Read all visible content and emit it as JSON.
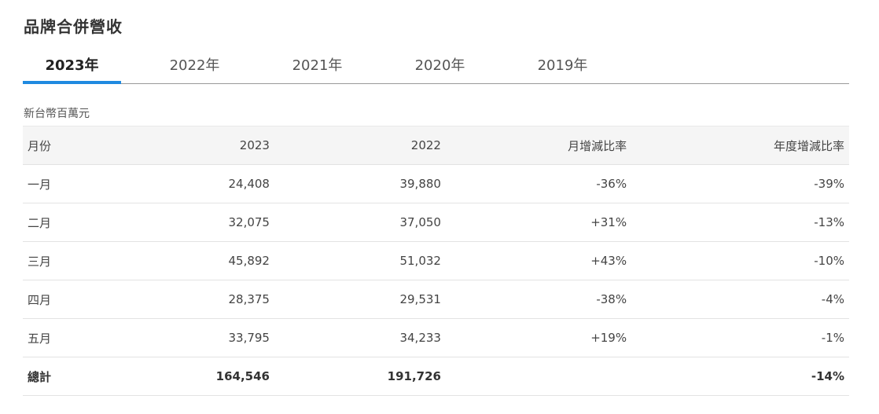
{
  "page_title": "品牌合併營收",
  "tabs": [
    {
      "label": "2023年",
      "active": true
    },
    {
      "label": "2022年",
      "active": false
    },
    {
      "label": "2021年",
      "active": false
    },
    {
      "label": "2020年",
      "active": false
    },
    {
      "label": "2019年",
      "active": false
    }
  ],
  "unit_label": "新台幣百萬元",
  "table": {
    "headers": [
      "月份",
      "2023",
      "2022",
      "月增減比率",
      "年度增減比率"
    ],
    "rows": [
      {
        "month": "一月",
        "y2023": "24,408",
        "y2022": "39,880",
        "mom": "-36%",
        "yoy": "-39%"
      },
      {
        "month": "二月",
        "y2023": "32,075",
        "y2022": "37,050",
        "mom": "+31%",
        "yoy": "-13%"
      },
      {
        "month": "三月",
        "y2023": "45,892",
        "y2022": "51,032",
        "mom": "+43%",
        "yoy": "-10%"
      },
      {
        "month": "四月",
        "y2023": "28,375",
        "y2022": "29,531",
        "mom": "-38%",
        "yoy": "-4%"
      },
      {
        "month": "五月",
        "y2023": "33,795",
        "y2022": "34,233",
        "mom": "+19%",
        "yoy": "-1%"
      }
    ],
    "total": {
      "month": "總計",
      "y2023": "164,546",
      "y2022": "191,726",
      "mom": "",
      "yoy": "-14%"
    }
  },
  "colors": {
    "accent": "#1f8ae0",
    "header_bg": "#f5f5f5",
    "border": "#e3e3e3"
  }
}
